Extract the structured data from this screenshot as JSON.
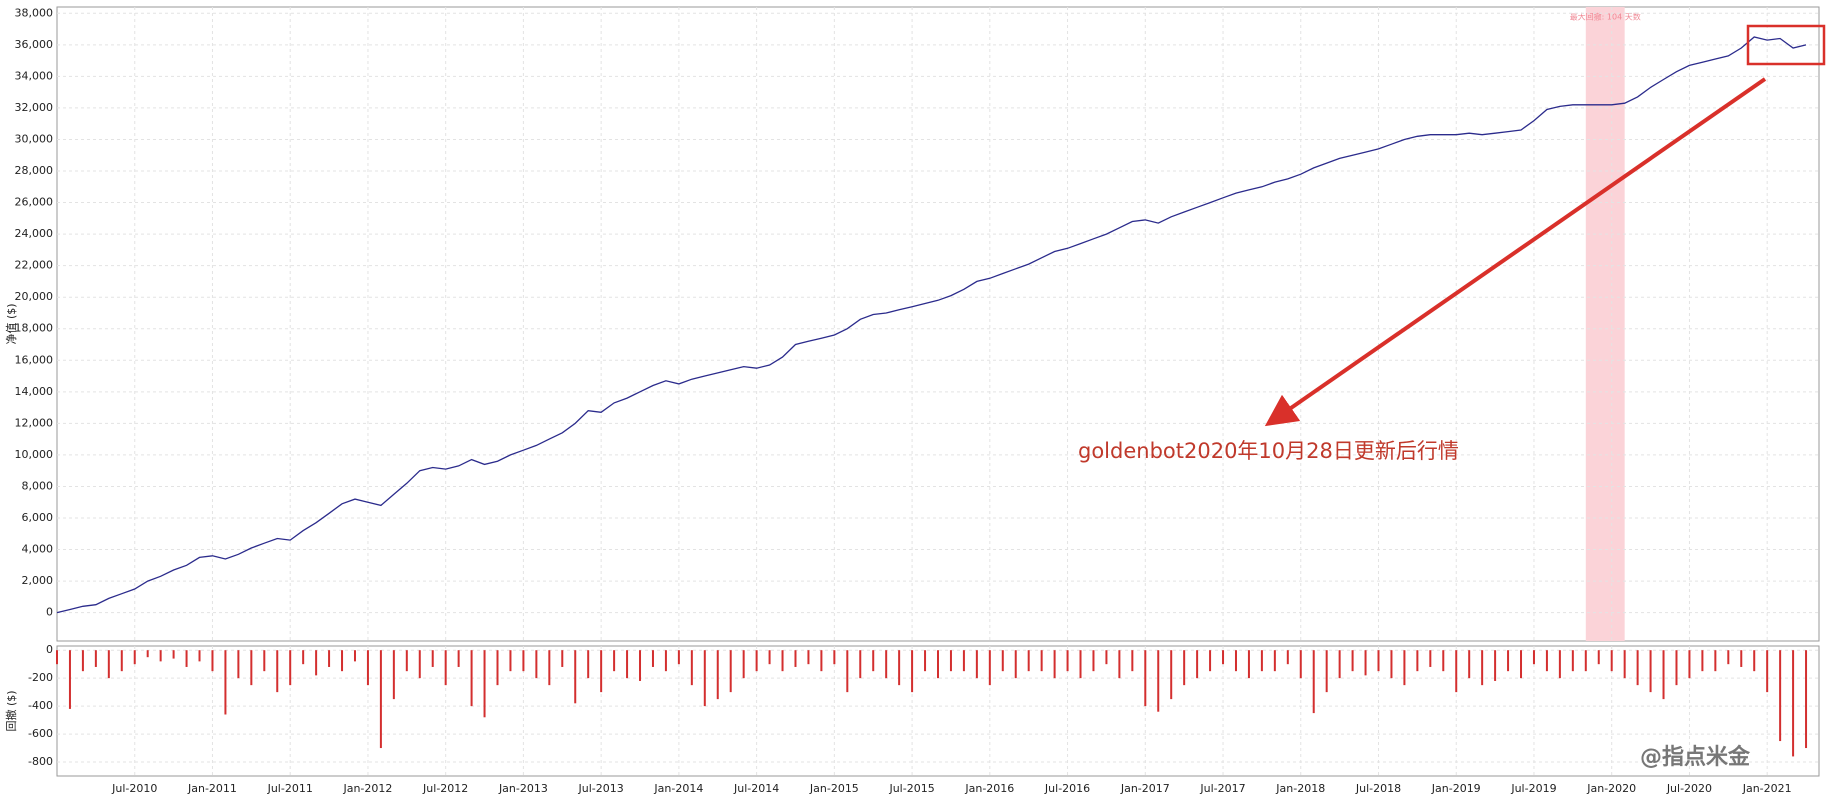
{
  "chart_data": [
    {
      "type": "line",
      "y_label": "净值 ($)",
      "color": "#2b2b8c",
      "xlim": [
        "2010-01",
        "2021-05"
      ],
      "ylim": [
        -1800,
        38400
      ],
      "grid": true,
      "yticks": [
        0,
        {
          "value": 2000,
          "label": "2,000"
        },
        {
          "value": 4000,
          "label": "4,000"
        },
        {
          "value": 6000,
          "label": "6,000"
        },
        {
          "value": 8000,
          "label": "8,000"
        },
        {
          "value": 10000,
          "label": "10,000"
        },
        {
          "value": 12000,
          "label": "12,000"
        },
        {
          "value": 14000,
          "label": "14,000"
        },
        {
          "value": 16000,
          "label": "16,000"
        },
        {
          "value": 18000,
          "label": "18,000"
        },
        {
          "value": 20000,
          "label": "20,000"
        },
        {
          "value": 22000,
          "label": "22,000"
        },
        {
          "value": 24000,
          "label": "24,000"
        },
        {
          "value": 26000,
          "label": "26,000"
        },
        {
          "value": 28000,
          "label": "28,000"
        },
        {
          "value": 30000,
          "label": "30,000"
        },
        {
          "value": 32000,
          "label": "32,000"
        },
        {
          "value": 34000,
          "label": "34,000"
        },
        {
          "value": 36000,
          "label": "36,000"
        },
        {
          "value": 38000,
          "label": "38,000"
        }
      ],
      "highlight_x": [
        "2019-11",
        "2020-02"
      ],
      "highlight_color": "#fbd3d8",
      "highlight_label": "最大回撤: 104 天数",
      "annotation": "goldenbot2020年10月28日更新后行情",
      "x": [
        "2010-01",
        "2010-02",
        "2010-03",
        "2010-04",
        "2010-05",
        "2010-06",
        "2010-07",
        "2010-08",
        "2010-09",
        "2010-10",
        "2010-11",
        "2010-12",
        "2011-01",
        "2011-02",
        "2011-03",
        "2011-04",
        "2011-05",
        "2011-06",
        "2011-07",
        "2011-08",
        "2011-09",
        "2011-10",
        "2011-11",
        "2011-12",
        "2012-01",
        "2012-02",
        "2012-03",
        "2012-04",
        "2012-05",
        "2012-06",
        "2012-07",
        "2012-08",
        "2012-09",
        "2012-10",
        "2012-11",
        "2012-12",
        "2013-01",
        "2013-02",
        "2013-03",
        "2013-04",
        "2013-05",
        "2013-06",
        "2013-07",
        "2013-08",
        "2013-09",
        "2013-10",
        "2013-11",
        "2013-12",
        "2014-01",
        "2014-02",
        "2014-03",
        "2014-04",
        "2014-05",
        "2014-06",
        "2014-07",
        "2014-08",
        "2014-09",
        "2014-10",
        "2014-11",
        "2014-12",
        "2015-01",
        "2015-02",
        "2015-03",
        "2015-04",
        "2015-05",
        "2015-06",
        "2015-07",
        "2015-08",
        "2015-09",
        "2015-10",
        "2015-11",
        "2015-12",
        "2016-01",
        "2016-02",
        "2016-03",
        "2016-04",
        "2016-05",
        "2016-06",
        "2016-07",
        "2016-08",
        "2016-09",
        "2016-10",
        "2016-11",
        "2016-12",
        "2017-01",
        "2017-02",
        "2017-03",
        "2017-04",
        "2017-05",
        "2017-06",
        "2017-07",
        "2017-08",
        "2017-09",
        "2017-10",
        "2017-11",
        "2017-12",
        "2018-01",
        "2018-02",
        "2018-03",
        "2018-04",
        "2018-05",
        "2018-06",
        "2018-07",
        "2018-08",
        "2018-09",
        "2018-10",
        "2018-11",
        "2018-12",
        "2019-01",
        "2019-02",
        "2019-03",
        "2019-04",
        "2019-05",
        "2019-06",
        "2019-07",
        "2019-08",
        "2019-09",
        "2019-10",
        "2019-11",
        "2019-12",
        "2020-01",
        "2020-02",
        "2020-03",
        "2020-04",
        "2020-05",
        "2020-06",
        "2020-07",
        "2020-08",
        "2020-09",
        "2020-10",
        "2020-11",
        "2020-12",
        "2021-01",
        "2021-02",
        "2021-03",
        "2021-04"
      ],
      "values": [
        0,
        200,
        400,
        500,
        900,
        1200,
        1500,
        2000,
        2300,
        2700,
        3000,
        3500,
        3600,
        3400,
        3700,
        4100,
        4400,
        4700,
        4600,
        5200,
        5700,
        6300,
        6900,
        7200,
        7000,
        6800,
        7500,
        8200,
        9000,
        9200,
        9100,
        9300,
        9700,
        9400,
        9600,
        10000,
        10300,
        10600,
        11000,
        11400,
        12000,
        12800,
        12700,
        13300,
        13600,
        14000,
        14400,
        14700,
        14500,
        14800,
        15000,
        15200,
        15400,
        15600,
        15500,
        15700,
        16200,
        17000,
        17200,
        17400,
        17600,
        18000,
        18600,
        18900,
        19000,
        19200,
        19400,
        19600,
        19800,
        20100,
        20500,
        21000,
        21200,
        21500,
        21800,
        22100,
        22500,
        22900,
        23100,
        23400,
        23700,
        24000,
        24400,
        24800,
        24900,
        24700,
        25100,
        25400,
        25700,
        26000,
        26300,
        26600,
        26800,
        27000,
        27300,
        27500,
        27800,
        28200,
        28500,
        28800,
        29000,
        29200,
        29400,
        29700,
        30000,
        30200,
        30300,
        30300,
        30300,
        30400,
        30300,
        30400,
        30500,
        30600,
        31200,
        31900,
        32100,
        32200,
        32200,
        32200,
        32200,
        32300,
        32700,
        33300,
        33800,
        34300,
        34700,
        34900,
        35100,
        35300,
        35800,
        36500,
        36300,
        36400,
        35800,
        36000
      ]
    },
    {
      "type": "bar",
      "y_label": "回撤 ($)",
      "color": "#d32f2f",
      "xlim": [
        "2010-01",
        "2021-05"
      ],
      "ylim": [
        -900,
        30
      ],
      "grid": true,
      "yticks": [
        0,
        -200,
        -400,
        -600,
        -800
      ],
      "xticks": [
        {
          "value": "2010-07",
          "label": "Jul-2010"
        },
        {
          "value": "2011-01",
          "label": "Jan-2011"
        },
        {
          "value": "2011-07",
          "label": "Jul-2011"
        },
        {
          "value": "2012-01",
          "label": "Jan-2012"
        },
        {
          "value": "2012-07",
          "label": "Jul-2012"
        },
        {
          "value": "2013-01",
          "label": "Jan-2013"
        },
        {
          "value": "2013-07",
          "label": "Jul-2013"
        },
        {
          "value": "2014-01",
          "label": "Jan-2014"
        },
        {
          "value": "2014-07",
          "label": "Jul-2014"
        },
        {
          "value": "2015-01",
          "label": "Jan-2015"
        },
        {
          "value": "2015-07",
          "label": "Jul-2015"
        },
        {
          "value": "2016-01",
          "label": "Jan-2016"
        },
        {
          "value": "2016-07",
          "label": "Jul-2016"
        },
        {
          "value": "2017-01",
          "label": "Jan-2017"
        },
        {
          "value": "2017-07",
          "label": "Jul-2017"
        },
        {
          "value": "2018-01",
          "label": "Jan-2018"
        },
        {
          "value": "2018-07",
          "label": "Jul-2018"
        },
        {
          "value": "2019-01",
          "label": "Jan-2019"
        },
        {
          "value": "2019-07",
          "label": "Jul-2019"
        },
        {
          "value": "2020-01",
          "label": "Jan-2020"
        },
        {
          "value": "2020-07",
          "label": "Jul-2020"
        },
        {
          "value": "2021-01",
          "label": "Jan-2021"
        }
      ],
      "x": [
        "2010-01",
        "2010-02",
        "2010-03",
        "2010-04",
        "2010-05",
        "2010-06",
        "2010-07",
        "2010-08",
        "2010-09",
        "2010-10",
        "2010-11",
        "2010-12",
        "2011-01",
        "2011-02",
        "2011-03",
        "2011-04",
        "2011-05",
        "2011-06",
        "2011-07",
        "2011-08",
        "2011-09",
        "2011-10",
        "2011-11",
        "2011-12",
        "2012-01",
        "2012-02",
        "2012-03",
        "2012-04",
        "2012-05",
        "2012-06",
        "2012-07",
        "2012-08",
        "2012-09",
        "2012-10",
        "2012-11",
        "2012-12",
        "2013-01",
        "2013-02",
        "2013-03",
        "2013-04",
        "2013-05",
        "2013-06",
        "2013-07",
        "2013-08",
        "2013-09",
        "2013-10",
        "2013-11",
        "2013-12",
        "2014-01",
        "2014-02",
        "2014-03",
        "2014-04",
        "2014-05",
        "2014-06",
        "2014-07",
        "2014-08",
        "2014-09",
        "2014-10",
        "2014-11",
        "2014-12",
        "2015-01",
        "2015-02",
        "2015-03",
        "2015-04",
        "2015-05",
        "2015-06",
        "2015-07",
        "2015-08",
        "2015-09",
        "2015-10",
        "2015-11",
        "2015-12",
        "2016-01",
        "2016-02",
        "2016-03",
        "2016-04",
        "2016-05",
        "2016-06",
        "2016-07",
        "2016-08",
        "2016-09",
        "2016-10",
        "2016-11",
        "2016-12",
        "2017-01",
        "2017-02",
        "2017-03",
        "2017-04",
        "2017-05",
        "2017-06",
        "2017-07",
        "2017-08",
        "2017-09",
        "2017-10",
        "2017-11",
        "2017-12",
        "2018-01",
        "2018-02",
        "2018-03",
        "2018-04",
        "2018-05",
        "2018-06",
        "2018-07",
        "2018-08",
        "2018-09",
        "2018-10",
        "2018-11",
        "2018-12",
        "2019-01",
        "2019-02",
        "2019-03",
        "2019-04",
        "2019-05",
        "2019-06",
        "2019-07",
        "2019-08",
        "2019-09",
        "2019-10",
        "2019-11",
        "2019-12",
        "2020-01",
        "2020-02",
        "2020-03",
        "2020-04",
        "2020-05",
        "2020-06",
        "2020-07",
        "2020-08",
        "2020-09",
        "2020-10",
        "2020-11",
        "2020-12",
        "2021-01",
        "2021-02",
        "2021-03",
        "2021-04"
      ],
      "values": [
        -100,
        -420,
        -150,
        -120,
        -200,
        -150,
        -100,
        -50,
        -80,
        -60,
        -120,
        -80,
        -150,
        -460,
        -200,
        -250,
        -150,
        -300,
        -250,
        -100,
        -180,
        -120,
        -150,
        -80,
        -250,
        -700,
        -350,
        -150,
        -200,
        -120,
        -250,
        -120,
        -400,
        -480,
        -250,
        -150,
        -150,
        -200,
        -250,
        -120,
        -380,
        -200,
        -300,
        -150,
        -200,
        -220,
        -120,
        -150,
        -100,
        -250,
        -400,
        -350,
        -300,
        -200,
        -150,
        -100,
        -150,
        -120,
        -100,
        -150,
        -100,
        -300,
        -200,
        -150,
        -200,
        -250,
        -300,
        -150,
        -200,
        -150,
        -150,
        -200,
        -250,
        -150,
        -200,
        -150,
        -150,
        -200,
        -150,
        -200,
        -150,
        -100,
        -200,
        -150,
        -400,
        -440,
        -350,
        -250,
        -200,
        -150,
        -100,
        -150,
        -200,
        -150,
        -150,
        -100,
        -200,
        -450,
        -300,
        -200,
        -150,
        -180,
        -150,
        -200,
        -250,
        -150,
        -120,
        -150,
        -300,
        -200,
        -250,
        -220,
        -150,
        -200,
        -100,
        -150,
        -200,
        -150,
        -150,
        -100,
        -150,
        -200,
        -250,
        -300,
        -350,
        -250,
        -200,
        -150,
        -150,
        -100,
        -120,
        -150,
        -300,
        -650,
        -760,
        -700
      ]
    }
  ],
  "watermark": "@指点米金"
}
